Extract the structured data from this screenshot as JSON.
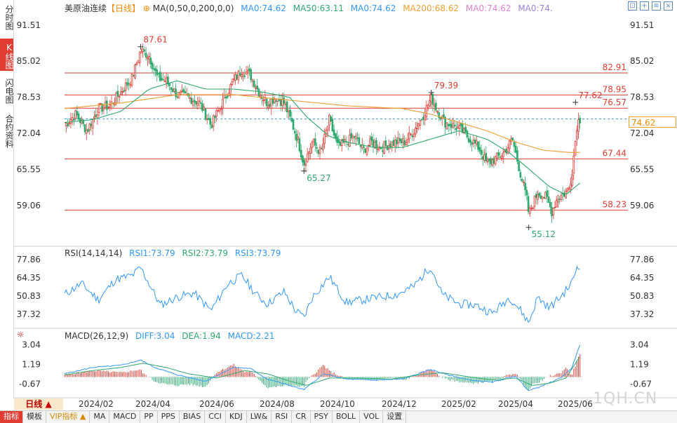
{
  "sidebar": {
    "tabs": [
      {
        "label": "分时图",
        "active": false
      },
      {
        "label": "K线图",
        "active": true
      },
      {
        "label": "闪电图",
        "active": false
      },
      {
        "label": "合约资料",
        "active": false
      }
    ]
  },
  "legend_main": {
    "title": "美原油连续",
    "period": "【日线】",
    "ma_def": "MA(0,50,0,200,0,0)",
    "items": [
      {
        "text": "MA0:74.62",
        "color": "#3399ff"
      },
      {
        "text": "MA50:63.11",
        "color": "#2eaa6e"
      },
      {
        "text": "MA0:74.62",
        "color": "#3399ff"
      },
      {
        "text": "MA200:68.62",
        "color": "#f0a030"
      },
      {
        "text": "MA0:74.62",
        "color": "#e080d0"
      },
      {
        "text": "MA0:74.",
        "color": "#a080e0"
      }
    ]
  },
  "legend_rsi": {
    "def": "RSI(14,14,14)",
    "items": [
      {
        "text": "RSI1:73.79",
        "color": "#3399ff"
      },
      {
        "text": "RSI2:73.79",
        "color": "#2eaa6e"
      },
      {
        "text": "RSI3:73.79",
        "color": "#3399ff"
      }
    ]
  },
  "legend_macd": {
    "def": "MACD(26,12,9)",
    "items": [
      {
        "text": "DIFF:3.04",
        "color": "#3399ff"
      },
      {
        "text": "DEA:1.94",
        "color": "#2eaa6e"
      },
      {
        "text": "MACD:2.21",
        "color": "#3399ff"
      }
    ]
  },
  "toolbar_icons": [
    "expand-icon",
    "add-icon",
    "settings-icon",
    "close-icon"
  ],
  "period_button": "日线 ▲",
  "watermark": "1QH.CN",
  "current_price_tag": "74.62",
  "bottom_tabs": [
    {
      "label": "指标",
      "active": true,
      "vip": false
    },
    {
      "label": "模板",
      "active": false,
      "vip": false
    },
    {
      "label": "VIP指标 ▲",
      "active": false,
      "vip": true
    },
    {
      "label": "MA",
      "active": false,
      "vip": false
    },
    {
      "label": "MACD",
      "active": false,
      "vip": false
    },
    {
      "label": "PP",
      "active": false,
      "vip": false
    },
    {
      "label": "PPS",
      "active": false,
      "vip": false
    },
    {
      "label": "BIAS",
      "active": false,
      "vip": false
    },
    {
      "label": "CCI",
      "active": false,
      "vip": false
    },
    {
      "label": "KDJ",
      "active": false,
      "vip": false
    },
    {
      "label": "LW&",
      "active": false,
      "vip": false
    },
    {
      "label": "RSI",
      "active": false,
      "vip": false
    },
    {
      "label": "CR",
      "active": false,
      "vip": false
    },
    {
      "label": "PSY",
      "active": false,
      "vip": false
    },
    {
      "label": "BOLL",
      "active": false,
      "vip": false
    },
    {
      "label": "VOL",
      "active": false,
      "vip": false
    },
    {
      "label": "设置",
      "active": false,
      "vip": false
    }
  ],
  "chart_data": {
    "type": "candlestick",
    "x_tick_labels": [
      "2024/02",
      "2024/04",
      "2024/06",
      "2024/08",
      "2024/10",
      "2024/12",
      "2025/02",
      "2025/04",
      "2025/06"
    ],
    "price_axis": {
      "ylim": [
        52.5,
        93.5
      ],
      "ticks": [
        91.51,
        85.02,
        78.53,
        72.04,
        65.55,
        59.06
      ],
      "right_ticks": [
        91.51,
        85.02,
        78.53,
        72.04,
        65.55,
        59.06
      ]
    },
    "horizontal_levels": [
      {
        "value": 82.91,
        "label": "82.91",
        "style": "solid",
        "color": "#e23b32"
      },
      {
        "value": 78.95,
        "label": "78.95",
        "style": "solid",
        "color": "#e23b32"
      },
      {
        "value": 76.57,
        "label": "76.57",
        "style": "solid",
        "color": "#e23b32"
      },
      {
        "value": 74.62,
        "label": "",
        "style": "dashed",
        "color": "#3399ff"
      },
      {
        "value": 67.44,
        "label": "67.44",
        "style": "solid",
        "color": "#e23b32"
      },
      {
        "value": 58.23,
        "label": "58.23",
        "style": "solid",
        "color": "#e23b32"
      }
    ],
    "annotations": [
      {
        "label": "87.61",
        "x_frac": 0.135,
        "value": 87.61,
        "color": "#e23b32",
        "pos": "above"
      },
      {
        "label": "65.27",
        "x_frac": 0.425,
        "value": 65.27,
        "color": "#2eaa6e",
        "pos": "below"
      },
      {
        "label": "79.39",
        "x_frac": 0.651,
        "value": 79.39,
        "color": "#e23b32",
        "pos": "above"
      },
      {
        "label": "55.12",
        "x_frac": 0.824,
        "value": 55.12,
        "color": "#2eaa6e",
        "pos": "below"
      },
      {
        "label": "77.62",
        "x_frac": 0.907,
        "value": 77.62,
        "color": "#e23b32",
        "pos": "above"
      }
    ],
    "close_keypoints": [
      [
        0.0,
        73.5
      ],
      [
        0.02,
        75.5
      ],
      [
        0.04,
        72.5
      ],
      [
        0.06,
        76.5
      ],
      [
        0.08,
        77.0
      ],
      [
        0.1,
        79.5
      ],
      [
        0.12,
        82.0
      ],
      [
        0.135,
        87.0
      ],
      [
        0.15,
        86.0
      ],
      [
        0.165,
        82.0
      ],
      [
        0.18,
        81.5
      ],
      [
        0.2,
        79.0
      ],
      [
        0.22,
        78.5
      ],
      [
        0.24,
        77.5
      ],
      [
        0.26,
        73.5
      ],
      [
        0.27,
        75.5
      ],
      [
        0.285,
        78.5
      ],
      [
        0.3,
        81.5
      ],
      [
        0.315,
        83.5
      ],
      [
        0.33,
        82.5
      ],
      [
        0.345,
        79.5
      ],
      [
        0.36,
        77.5
      ],
      [
        0.375,
        78.5
      ],
      [
        0.39,
        77.5
      ],
      [
        0.405,
        73.5
      ],
      [
        0.415,
        70.5
      ],
      [
        0.425,
        66.5
      ],
      [
        0.44,
        70.5
      ],
      [
        0.455,
        68.5
      ],
      [
        0.47,
        74.5
      ],
      [
        0.485,
        69.5
      ],
      [
        0.5,
        70.5
      ],
      [
        0.515,
        71.5
      ],
      [
        0.53,
        69.0
      ],
      [
        0.545,
        70.5
      ],
      [
        0.56,
        69.5
      ],
      [
        0.575,
        70.0
      ],
      [
        0.59,
        70.5
      ],
      [
        0.605,
        70.5
      ],
      [
        0.62,
        72.5
      ],
      [
        0.635,
        75.0
      ],
      [
        0.651,
        78.5
      ],
      [
        0.66,
        76.5
      ],
      [
        0.675,
        74.0
      ],
      [
        0.69,
        73.5
      ],
      [
        0.705,
        72.5
      ],
      [
        0.72,
        71.0
      ],
      [
        0.735,
        69.5
      ],
      [
        0.75,
        66.5
      ],
      [
        0.765,
        67.5
      ],
      [
        0.78,
        68.5
      ],
      [
        0.795,
        71.0
      ],
      [
        0.81,
        64.5
      ],
      [
        0.82,
        60.5
      ],
      [
        0.824,
        57.5
      ],
      [
        0.84,
        61.5
      ],
      [
        0.855,
        60.5
      ],
      [
        0.865,
        58.0
      ],
      [
        0.875,
        60.5
      ],
      [
        0.885,
        61.0
      ],
      [
        0.895,
        62.0
      ],
      [
        0.9,
        64.5
      ],
      [
        0.905,
        69.0
      ],
      [
        0.91,
        74.0
      ],
      [
        0.915,
        74.62
      ]
    ],
    "ma50_keypoints": [
      [
        0.0,
        74.0
      ],
      [
        0.05,
        74.5
      ],
      [
        0.1,
        76.0
      ],
      [
        0.15,
        80.0
      ],
      [
        0.2,
        81.5
      ],
      [
        0.25,
        80.0
      ],
      [
        0.3,
        80.0
      ],
      [
        0.35,
        79.5
      ],
      [
        0.4,
        78.5
      ],
      [
        0.43,
        75.0
      ],
      [
        0.47,
        71.5
      ],
      [
        0.5,
        70.5
      ],
      [
        0.55,
        69.5
      ],
      [
        0.6,
        69.5
      ],
      [
        0.65,
        71.0
      ],
      [
        0.7,
        72.5
      ],
      [
        0.75,
        71.0
      ],
      [
        0.79,
        68.5
      ],
      [
        0.82,
        66.0
      ],
      [
        0.86,
        62.5
      ],
      [
        0.89,
        61.0
      ],
      [
        0.915,
        63.11
      ]
    ],
    "ma200_keypoints": [
      [
        0.0,
        76.5
      ],
      [
        0.1,
        77.5
      ],
      [
        0.2,
        79.0
      ],
      [
        0.3,
        79.0
      ],
      [
        0.4,
        78.0
      ],
      [
        0.5,
        77.0
      ],
      [
        0.6,
        76.5
      ],
      [
        0.65,
        75.5
      ],
      [
        0.7,
        74.0
      ],
      [
        0.75,
        72.5
      ],
      [
        0.8,
        70.5
      ],
      [
        0.85,
        69.0
      ],
      [
        0.9,
        68.6
      ],
      [
        0.915,
        68.62
      ]
    ],
    "rsi": {
      "ylim": [
        30,
        82
      ],
      "ticks": [
        77.86,
        64.35,
        50.83,
        37.32
      ],
      "keypoints": [
        [
          0.0,
          52
        ],
        [
          0.03,
          60
        ],
        [
          0.06,
          48
        ],
        [
          0.09,
          63
        ],
        [
          0.12,
          66
        ],
        [
          0.135,
          72
        ],
        [
          0.15,
          60
        ],
        [
          0.17,
          44
        ],
        [
          0.2,
          50
        ],
        [
          0.23,
          53
        ],
        [
          0.26,
          40
        ],
        [
          0.29,
          60
        ],
        [
          0.315,
          66
        ],
        [
          0.34,
          52
        ],
        [
          0.36,
          45
        ],
        [
          0.39,
          54
        ],
        [
          0.41,
          40
        ],
        [
          0.425,
          35
        ],
        [
          0.44,
          50
        ],
        [
          0.47,
          65
        ],
        [
          0.5,
          46
        ],
        [
          0.53,
          48
        ],
        [
          0.56,
          50
        ],
        [
          0.59,
          52
        ],
        [
          0.62,
          58
        ],
        [
          0.65,
          73
        ],
        [
          0.67,
          52
        ],
        [
          0.7,
          45
        ],
        [
          0.73,
          44
        ],
        [
          0.76,
          38
        ],
        [
          0.79,
          50
        ],
        [
          0.81,
          40
        ],
        [
          0.824,
          31
        ],
        [
          0.84,
          50
        ],
        [
          0.86,
          42
        ],
        [
          0.88,
          50
        ],
        [
          0.9,
          60
        ],
        [
          0.91,
          73
        ],
        [
          0.915,
          73.79
        ]
      ]
    },
    "macd": {
      "ylim": [
        -1.5,
        3.8
      ],
      "ticks": [
        3.04,
        1.19,
        -0.67
      ],
      "diff_keypoints": [
        [
          0.0,
          0.3
        ],
        [
          0.05,
          0.9
        ],
        [
          0.1,
          1.1
        ],
        [
          0.135,
          1.6
        ],
        [
          0.16,
          0.9
        ],
        [
          0.2,
          0.2
        ],
        [
          0.25,
          -0.4
        ],
        [
          0.3,
          0.9
        ],
        [
          0.33,
          0.8
        ],
        [
          0.36,
          -0.2
        ],
        [
          0.4,
          -0.8
        ],
        [
          0.425,
          -1.2
        ],
        [
          0.46,
          0.3
        ],
        [
          0.5,
          -0.2
        ],
        [
          0.55,
          -0.3
        ],
        [
          0.6,
          -0.2
        ],
        [
          0.65,
          0.7
        ],
        [
          0.68,
          0.2
        ],
        [
          0.72,
          -0.3
        ],
        [
          0.76,
          -0.5
        ],
        [
          0.8,
          0.1
        ],
        [
          0.824,
          -1.3
        ],
        [
          0.85,
          -0.8
        ],
        [
          0.88,
          -0.1
        ],
        [
          0.9,
          0.8
        ],
        [
          0.915,
          3.04
        ]
      ],
      "dea_keypoints": [
        [
          0.0,
          0.2
        ],
        [
          0.05,
          0.6
        ],
        [
          0.1,
          0.9
        ],
        [
          0.14,
          1.3
        ],
        [
          0.18,
          0.9
        ],
        [
          0.22,
          0.3
        ],
        [
          0.27,
          -0.1
        ],
        [
          0.32,
          0.6
        ],
        [
          0.36,
          0.3
        ],
        [
          0.4,
          -0.4
        ],
        [
          0.43,
          -0.8
        ],
        [
          0.47,
          -0.1
        ],
        [
          0.52,
          -0.1
        ],
        [
          0.58,
          -0.2
        ],
        [
          0.63,
          0.2
        ],
        [
          0.67,
          0.4
        ],
        [
          0.72,
          0.0
        ],
        [
          0.76,
          -0.3
        ],
        [
          0.8,
          -0.1
        ],
        [
          0.83,
          -0.8
        ],
        [
          0.86,
          -0.6
        ],
        [
          0.89,
          -0.1
        ],
        [
          0.915,
          1.94
        ]
      ]
    }
  }
}
